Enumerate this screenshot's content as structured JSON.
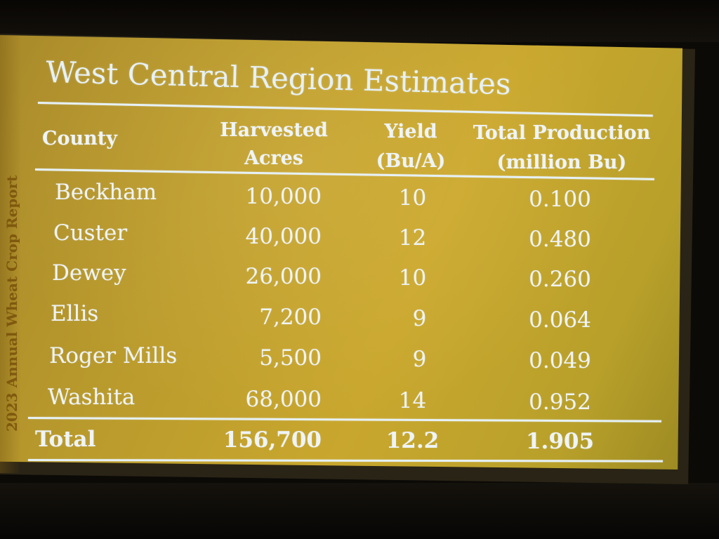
{
  "slide": {
    "title": "West Central Region Estimates",
    "side_label": "2023 Annual Wheat Crop Report"
  },
  "table": {
    "headers": {
      "county": "County",
      "acres_line1": "Harvested",
      "acres_line2": "Acres",
      "yield_line1": "Yield",
      "yield_line2": "(Bu/A)",
      "prod_line1": "Total Production",
      "prod_line2": "(million Bu)"
    },
    "rows": [
      {
        "county": "Beckham",
        "acres": "10,000",
        "yield": "10",
        "production": "0.100"
      },
      {
        "county": "Custer",
        "acres": "40,000",
        "yield": "12",
        "production": "0.480"
      },
      {
        "county": "Dewey",
        "acres": "26,000",
        "yield": "10",
        "production": "0.260"
      },
      {
        "county": "Ellis",
        "acres": "7,200",
        "yield": "9",
        "production": "0.064"
      },
      {
        "county": "Roger Mills",
        "acres": "5,500",
        "yield": "9",
        "production": "0.049"
      },
      {
        "county": "Washita",
        "acres": "68,000",
        "yield": "14",
        "production": "0.952"
      }
    ],
    "total": {
      "county": "Total",
      "acres": "156,700",
      "yield": "12.2",
      "production": "1.905"
    }
  },
  "colors": {
    "slide_gold": "#c9a72e",
    "text": "#eef4f7"
  }
}
